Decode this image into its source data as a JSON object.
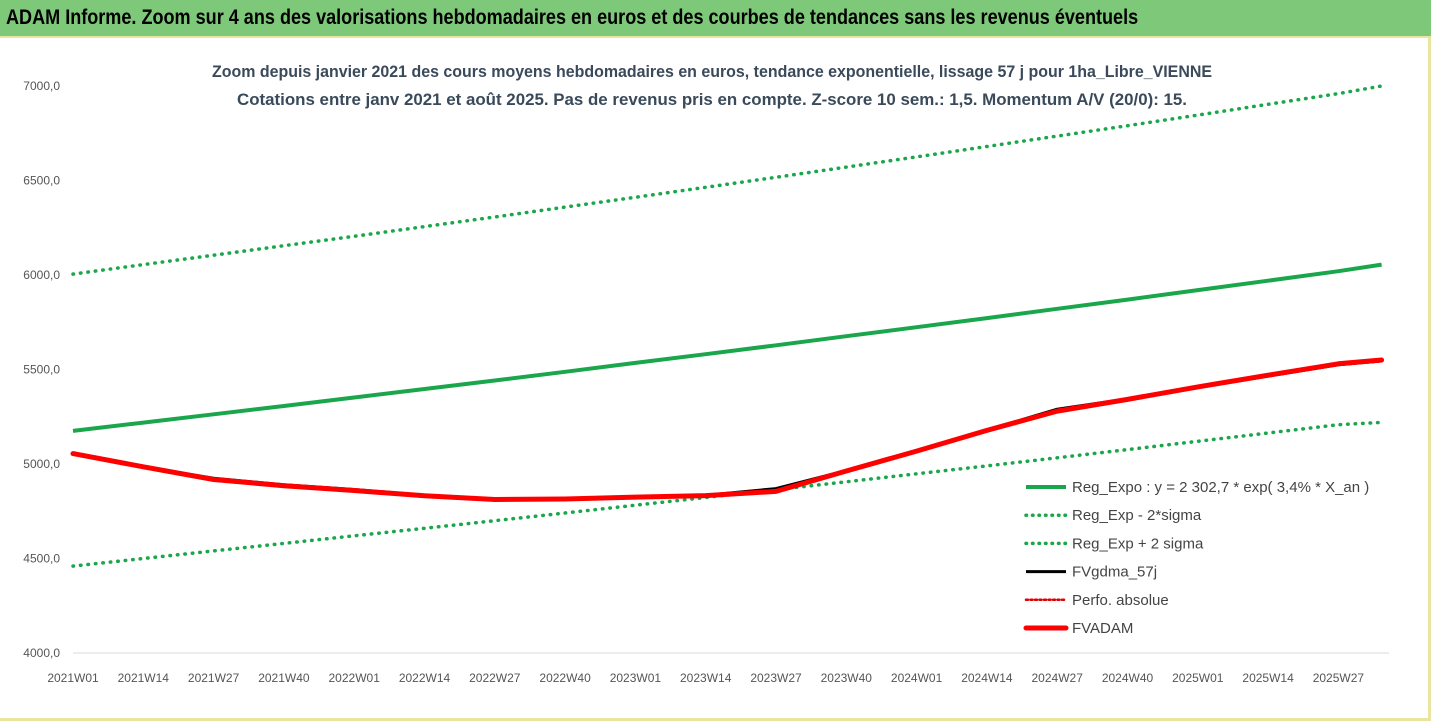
{
  "banner": {
    "title": "ADAM Informe. Zoom sur 4 ans des valorisations hebdomadaires en euros et des courbes de tendances sans les revenus éventuels"
  },
  "chart_data": {
    "type": "line",
    "title_lines": [
      "Zoom depuis janvier 2021 des cours moyens hebdomadaires en euros, tendance exponentielle, lissage 57 j pour 1ha_Libre_VIENNE",
      "Cotations entre janv 2021 et août 2025.  Pas de revenus pris en compte.  Z-score 10 sem.: 1,5.  Momentum A/V (20/0): 15."
    ],
    "ylim": [
      4000,
      7000
    ],
    "yticks": [
      4000,
      4500,
      5000,
      5500,
      6000,
      6500,
      7000
    ],
    "ytick_labels": [
      "4000,0",
      "4500,0",
      "5000,0",
      "5500,0",
      "6000,0",
      "6500,0",
      "7000,0"
    ],
    "grid": false,
    "legend_position": "bottom-right",
    "x_tick_labels": [
      "2021W01",
      "2021W14",
      "2021W27",
      "2021W40",
      "2022W01",
      "2022W14",
      "2022W27",
      "2022W40",
      "2023W01",
      "2023W14",
      "2023W27",
      "2023W40",
      "2024W01",
      "2024W14",
      "2024W27",
      "2024W40",
      "2025W01",
      "2025W14",
      "2025W27"
    ],
    "x_points": [
      "2021W01",
      "2021W14",
      "2021W27",
      "2021W40",
      "2022W01",
      "2022W14",
      "2022W27",
      "2022W40",
      "2023W01",
      "2023W14",
      "2023W27",
      "2023W40",
      "2024W01",
      "2024W14",
      "2024W27",
      "2024W40",
      "2025W01",
      "2025W14",
      "2025W27",
      "2025W35"
    ],
    "series": [
      {
        "name": "Reg_Expo : y = 2 302,7 * exp( 3,4% *  X_an )",
        "color": "#1aa64a",
        "style": "solid",
        "values": [
          5175,
          5219,
          5263,
          5307,
          5352,
          5397,
          5442,
          5488,
          5535,
          5581,
          5628,
          5676,
          5724,
          5772,
          5821,
          5870,
          5920,
          5970,
          6020,
          6055
        ]
      },
      {
        "name": "Reg_Exp - 2*sigma",
        "color": "#1aa64a",
        "style": "dotted",
        "values": [
          4460,
          4500,
          4540,
          4580,
          4620,
          4660,
          4700,
          4741,
          4782,
          4823,
          4864,
          4906,
          4948,
          4990,
          5033,
          5076,
          5120,
          5164,
          5208,
          5220
        ]
      },
      {
        "name": "Reg_Exp + 2 sigma",
        "color": "#1aa64a",
        "style": "dotted",
        "values": [
          6005,
          6055,
          6105,
          6155,
          6205,
          6256,
          6307,
          6359,
          6411,
          6464,
          6517,
          6571,
          6625,
          6680,
          6735,
          6790,
          6846,
          6903,
          6960,
          7000
        ]
      },
      {
        "name": "FVgdma_57j",
        "color": "#000000",
        "style": "solid",
        "values": [
          5055,
          4985,
          4925,
          4890,
          4865,
          4835,
          4815,
          4815,
          4825,
          4835,
          4870,
          4965,
          5070,
          5180,
          5290,
          5345,
          5405,
          5465,
          5525,
          5545
        ]
      },
      {
        "name": "Perfo. absolue",
        "color": "#e00000",
        "style": "dotted",
        "values": []
      },
      {
        "name": "FVADAM",
        "color": "#ff0000",
        "style": "solid-thick",
        "values": [
          5055,
          4985,
          4918,
          4885,
          4860,
          4832,
          4812,
          4815,
          4825,
          4833,
          4855,
          4963,
          5068,
          5178,
          5280,
          5342,
          5408,
          5470,
          5530,
          5550
        ]
      }
    ]
  }
}
